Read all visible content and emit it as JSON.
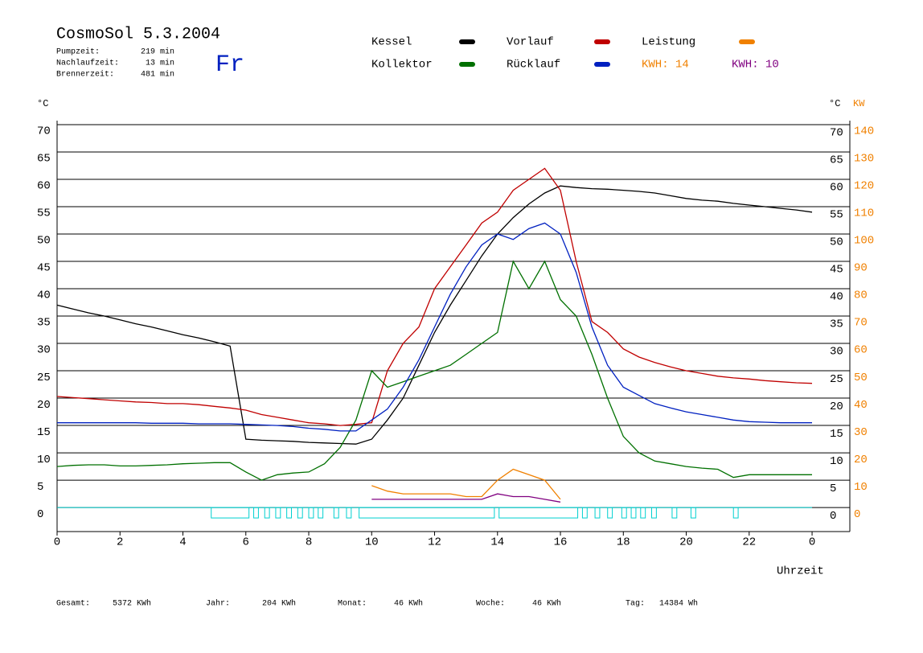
{
  "chart_data": {
    "type": "line",
    "title": "CosmoSol 5.3.2004",
    "day": "Fr",
    "stats": [
      {
        "label": "Pumpzeit:",
        "value": "219 min"
      },
      {
        "label": "Nachlaufzeit:",
        "value": "13 min"
      },
      {
        "label": "Brennerzeit:",
        "value": "481 min"
      }
    ],
    "y_label": "°C",
    "y2_label": "KW",
    "x_label": "Uhrzeit",
    "x": [
      0,
      0.5,
      1,
      1.5,
      2,
      2.5,
      3,
      3.5,
      4,
      4.5,
      5,
      5.5,
      6,
      6.5,
      7,
      7.5,
      8,
      8.5,
      9,
      9.5,
      10,
      10.5,
      11,
      11.5,
      12,
      12.5,
      13,
      13.5,
      14,
      14.5,
      15,
      15.5,
      16,
      16.5,
      17,
      17.5,
      18,
      18.5,
      19,
      19.5,
      20,
      20.5,
      21,
      21.5,
      22,
      22.5,
      23,
      23.5,
      24
    ],
    "series": [
      {
        "name": "Kessel",
        "color": "#000000",
        "values": [
          37,
          36.3,
          35.6,
          35,
          34.3,
          33.6,
          33,
          32.3,
          31.6,
          31,
          30.3,
          29.5,
          12.5,
          12.3,
          12.2,
          12.1,
          11.9,
          11.8,
          11.7,
          11.6,
          12.5,
          16,
          20,
          26,
          32,
          37,
          41.5,
          46,
          50,
          53,
          55.5,
          57.5,
          58.8,
          58.5,
          58.3,
          58.2,
          58,
          57.8,
          57.5,
          57,
          56.5,
          56.2,
          56,
          55.6,
          55.3,
          55,
          54.7,
          54.4,
          54
        ]
      },
      {
        "name": "Vorlauf",
        "color": "#c00000",
        "values": [
          20.3,
          20.1,
          19.9,
          19.7,
          19.5,
          19.3,
          19.2,
          19,
          19,
          18.8,
          18.5,
          18.2,
          17.8,
          17,
          16.5,
          16,
          15.5,
          15.3,
          15,
          15.2,
          15.5,
          25,
          30,
          33,
          40,
          44,
          48,
          52,
          54,
          58,
          60,
          62,
          58,
          45,
          34,
          32,
          29,
          27.5,
          26.5,
          25.7,
          25,
          24.5,
          24,
          23.7,
          23.5,
          23.2,
          23,
          22.8,
          22.7
        ]
      },
      {
        "name": "Leistung",
        "color": "#f08000",
        "axis": "y2",
        "kwh_label": "KWH: 14",
        "values": [
          null,
          null,
          null,
          null,
          null,
          null,
          null,
          null,
          null,
          null,
          null,
          null,
          null,
          null,
          null,
          null,
          null,
          null,
          null,
          null,
          8,
          6,
          5,
          5,
          5,
          5,
          4,
          4,
          10,
          14,
          12,
          10,
          3,
          null,
          null,
          null,
          null,
          null,
          null,
          null,
          null,
          null,
          null,
          null,
          null,
          null,
          null,
          null,
          null
        ]
      },
      {
        "name": "Kollektor",
        "color": "#007000",
        "values": [
          7.5,
          7.7,
          7.8,
          7.8,
          7.6,
          7.6,
          7.7,
          7.8,
          8,
          8.1,
          8.2,
          8.2,
          6.5,
          5,
          6,
          6.3,
          6.5,
          8,
          11,
          16,
          25,
          22,
          23,
          24,
          25,
          26,
          28,
          30,
          32,
          45,
          40,
          45,
          38,
          35,
          28,
          20,
          13,
          10,
          8.5,
          8,
          7.5,
          7.2,
          7,
          5.5,
          6,
          6,
          6,
          6,
          6
        ]
      },
      {
        "name": "Rücklauf",
        "color": "#0020c0",
        "values": [
          15.5,
          15.5,
          15.5,
          15.5,
          15.5,
          15.5,
          15.4,
          15.4,
          15.4,
          15.3,
          15.3,
          15.3,
          15.2,
          15.1,
          15,
          14.8,
          14.5,
          14.3,
          14,
          14,
          16,
          18,
          22,
          27,
          33,
          39,
          44,
          48,
          50,
          49,
          51,
          52,
          50,
          43,
          33,
          26,
          22,
          20.5,
          19,
          18.2,
          17.5,
          17,
          16.5,
          16,
          15.7,
          15.6,
          15.5,
          15.5,
          15.5
        ]
      },
      {
        "name": "KWH: 10",
        "color": "#800080",
        "axis": "y2",
        "values": [
          null,
          null,
          null,
          null,
          null,
          null,
          null,
          null,
          null,
          null,
          null,
          null,
          null,
          null,
          null,
          null,
          null,
          null,
          null,
          null,
          3,
          3,
          3,
          3,
          3,
          3,
          3,
          3,
          5,
          4,
          4,
          3,
          2,
          null,
          null,
          null,
          null,
          null,
          null,
          null,
          null,
          null,
          null,
          null,
          null,
          null,
          null,
          null,
          null
        ]
      }
    ],
    "pump_intervals": [
      [
        4.9,
        6.1
      ],
      [
        6.25,
        6.4
      ],
      [
        6.6,
        6.75
      ],
      [
        6.95,
        7.1
      ],
      [
        7.3,
        7.45
      ],
      [
        7.65,
        7.8
      ],
      [
        8,
        8.15
      ],
      [
        8.3,
        8.45
      ],
      [
        8.8,
        8.95
      ],
      [
        9.2,
        9.35
      ],
      [
        9.6,
        13.9
      ],
      [
        14.05,
        16.55
      ],
      [
        16.7,
        16.85
      ],
      [
        17.1,
        17.25
      ],
      [
        17.5,
        17.65
      ],
      [
        17.95,
        18.1
      ],
      [
        18.25,
        18.4
      ],
      [
        18.55,
        18.7
      ],
      [
        18.9,
        19.05
      ],
      [
        19.55,
        19.7
      ],
      [
        20.15,
        20.3
      ],
      [
        21.5,
        21.65
      ]
    ],
    "pump_color": "#00d0d0",
    "xlim": [
      0,
      25.2
    ],
    "ylim": [
      -4.4,
      70
    ],
    "y2lim": [
      -8.8,
      140
    ],
    "xticks": [
      0,
      2,
      4,
      6,
      8,
      10,
      12,
      14,
      16,
      18,
      20,
      22,
      {
        "value": 24,
        "label": "0"
      }
    ],
    "yticks": [
      0,
      5,
      10,
      15,
      20,
      25,
      30,
      35,
      40,
      45,
      50,
      55,
      60,
      65,
      70
    ],
    "y2ticks": [
      0,
      10,
      20,
      30,
      40,
      50,
      60,
      70,
      80,
      90,
      100,
      110,
      120,
      130,
      140
    ],
    "grid": true,
    "totals": [
      {
        "label": "Gesamt:",
        "value": "5372 KWh"
      },
      {
        "label": "Jahr:",
        "value": "204 KWh"
      },
      {
        "label": "Monat:",
        "value": "46 KWh"
      },
      {
        "label": "Woche:",
        "value": "46 KWh"
      },
      {
        "label": "Tag:",
        "value": "14384 Wh"
      }
    ]
  }
}
